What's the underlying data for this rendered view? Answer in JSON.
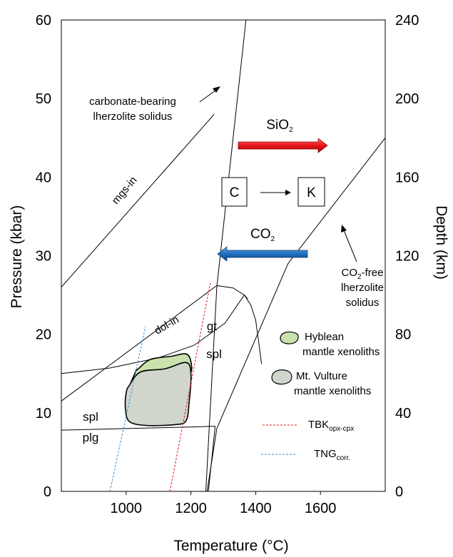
{
  "chart_data": {
    "type": "line",
    "xlabel": "Temperature (°C)",
    "ylabel": "Pressure (kbar)",
    "y2label": "Depth (km)",
    "xlim": [
      800,
      1800
    ],
    "ylim": [
      0,
      60
    ],
    "y2lim": [
      0,
      240
    ],
    "x_ticks": [
      "1000",
      "1200",
      "1400",
      "1600"
    ],
    "y_ticks": [
      "0",
      "10",
      "20",
      "30",
      "40",
      "50",
      "60"
    ],
    "y2_ticks": [
      "0",
      "40",
      "80",
      "120",
      "160",
      "200",
      "240"
    ],
    "annotations": {
      "carbonate_solidus": [
        "carbonate-bearing",
        "lherzolite solidus"
      ],
      "co2free_solidus": [
        "CO",
        "2",
        "-free",
        "lherzolite",
        "solidus"
      ],
      "mgs_in": "mgs-in",
      "dol_in": "dol-in",
      "gt": "gt",
      "spl_upper": "spl",
      "spl_lower": "spl",
      "plg": "plg",
      "sio2": [
        "SiO",
        "2"
      ],
      "co2": [
        "CO",
        "2"
      ],
      "box_c": "C",
      "box_k": "K"
    },
    "legend": {
      "hyblean": [
        "Hyblean",
        "mantle xenoliths"
      ],
      "vulture": [
        "Mt. Vulture",
        "mantle xenoliths"
      ],
      "tbk": [
        "TBK",
        "opx-cpx"
      ],
      "tng": [
        "TNG",
        "corr."
      ]
    },
    "series": [
      {
        "name": "",
        "role": "carbonate-solidus",
        "style": "solid",
        "points": [
          [
            1246,
            0
          ],
          [
            1280,
            26
          ],
          [
            1370,
            60
          ]
        ]
      },
      {
        "name": "",
        "role": "co2-free-solidus",
        "style": "solid",
        "points": [
          [
            1250,
            0
          ],
          [
            1280,
            8
          ],
          [
            1500,
            29
          ],
          [
            1800,
            45
          ]
        ]
      },
      {
        "name": "",
        "role": "mgs-in",
        "style": "solid",
        "points": [
          [
            800,
            26
          ],
          [
            1272,
            48
          ]
        ]
      },
      {
        "name": "",
        "role": "dol-in",
        "style": "solid",
        "points": [
          [
            800,
            11.5
          ],
          [
            1280,
            26.2
          ]
        ]
      },
      {
        "name": "",
        "role": "carbonate-ledge",
        "style": "solid",
        "points": [
          [
            1280,
            26.2
          ],
          [
            1330,
            25.9
          ],
          [
            1365,
            25
          ],
          [
            1385,
            23.7
          ],
          [
            1400,
            21.8
          ],
          [
            1411,
            18.5
          ],
          [
            1418,
            16.2
          ]
        ]
      },
      {
        "name": "",
        "role": "gt-spl",
        "style": "solid",
        "points": [
          [
            800,
            15
          ],
          [
            950,
            15.7
          ],
          [
            1100,
            17
          ],
          [
            1210,
            18.6
          ],
          [
            1305,
            21.4
          ],
          [
            1365,
            25
          ],
          [
            1375,
            24.5
          ]
        ]
      },
      {
        "name": "",
        "role": "spl-plg",
        "style": "solid",
        "points": [
          [
            800,
            7.8
          ],
          [
            1000,
            8
          ],
          [
            1200,
            8.2
          ],
          [
            1275,
            8.3
          ]
        ]
      },
      {
        "name": "",
        "role": "spl-plg-extension",
        "style": "solid",
        "points": [
          [
            1275,
            8.3
          ],
          [
            1254,
            0
          ]
        ]
      },
      {
        "name": "TBKopx-cpx",
        "role": "TBK",
        "style": "red-dashed",
        "points": [
          [
            1135,
            0
          ],
          [
            1260,
            26.5
          ]
        ]
      },
      {
        "name": "TNGcorr.",
        "role": "TNG",
        "style": "blue-dashed",
        "points": [
          [
            950,
            0
          ],
          [
            1060,
            21
          ]
        ]
      }
    ],
    "fields": [
      {
        "name": "Hyblean mantle xenoliths",
        "color": "#c9e2ad",
        "outline": [
          [
            1035,
            15.5
          ],
          [
            1075,
            16.8
          ],
          [
            1140,
            17.2
          ],
          [
            1185,
            17.5
          ],
          [
            1200,
            16.5
          ],
          [
            1195,
            15
          ],
          [
            1130,
            15.2
          ],
          [
            1060,
            14.5
          ],
          [
            1010,
            13
          ],
          [
            1030,
            15.3
          ]
        ]
      },
      {
        "name": "Mt. Vulture mantle xenoliths",
        "color": "#d0d6cc",
        "outline": [
          [
            1010,
            13.5
          ],
          [
            1045,
            15.2
          ],
          [
            1120,
            15.6
          ],
          [
            1185,
            16.4
          ],
          [
            1200,
            15
          ],
          [
            1195,
            11.5
          ],
          [
            1185,
            9
          ],
          [
            1150,
            8.5
          ],
          [
            1060,
            8.4
          ],
          [
            1010,
            8.9
          ],
          [
            998,
            10.5
          ],
          [
            1000,
            12.5
          ]
        ]
      }
    ],
    "colors": {
      "sio2_arrow": "#e8141a",
      "co2_arrow": "#1f6fc0",
      "tbk": "#e8141a",
      "tng": "#3f8fc9",
      "hyblean_fill": "#c9e2ad",
      "vulture_fill": "#d0d6cc"
    },
    "grid": false,
    "legend_position": "right"
  }
}
